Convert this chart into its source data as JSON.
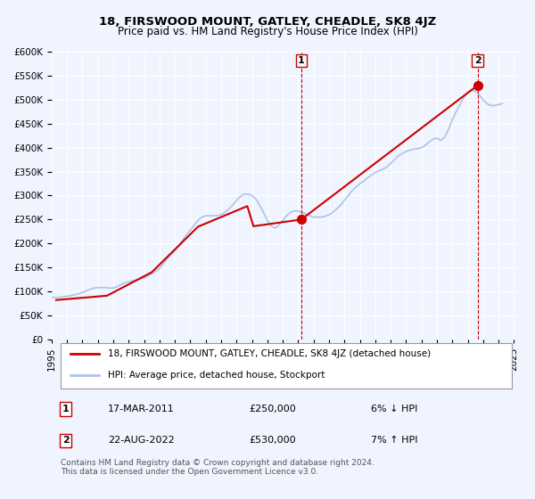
{
  "title": "18, FIRSWOOD MOUNT, GATLEY, CHEADLE, SK8 4JZ",
  "subtitle": "Price paid vs. HM Land Registry's House Price Index (HPI)",
  "xlabel": "",
  "ylabel": "",
  "ylim": [
    0,
    600000
  ],
  "yticks": [
    0,
    50000,
    100000,
    150000,
    200000,
    250000,
    300000,
    350000,
    400000,
    450000,
    500000,
    550000,
    600000
  ],
  "xlim_start": 1995.0,
  "xlim_end": 2025.5,
  "bg_color": "#f0f4ff",
  "plot_bg_color": "#f0f4ff",
  "grid_color": "#ffffff",
  "hpi_color": "#aac4e8",
  "price_color": "#cc0000",
  "marker1_date": 2011.2,
  "marker1_price": 250000,
  "marker1_label": "1",
  "marker2_date": 2022.64,
  "marker2_price": 530000,
  "marker2_label": "2",
  "legend_entry1": "18, FIRSWOOD MOUNT, GATLEY, CHEADLE, SK8 4JZ (detached house)",
  "legend_entry2": "HPI: Average price, detached house, Stockport",
  "annotation1_date": "17-MAR-2011",
  "annotation1_price": "£250,000",
  "annotation1_pct": "6% ↓ HPI",
  "annotation2_date": "22-AUG-2022",
  "annotation2_price": "£530,000",
  "annotation2_pct": "7% ↑ HPI",
  "footer": "Contains HM Land Registry data © Crown copyright and database right 2024.\nThis data is licensed under the Open Government Licence v3.0.",
  "hpi_x": [
    1995.0,
    1995.25,
    1995.5,
    1995.75,
    1996.0,
    1996.25,
    1996.5,
    1996.75,
    1997.0,
    1997.25,
    1997.5,
    1997.75,
    1998.0,
    1998.25,
    1998.5,
    1998.75,
    1999.0,
    1999.25,
    1999.5,
    1999.75,
    2000.0,
    2000.25,
    2000.5,
    2000.75,
    2001.0,
    2001.25,
    2001.5,
    2001.75,
    2002.0,
    2002.25,
    2002.5,
    2002.75,
    2003.0,
    2003.25,
    2003.5,
    2003.75,
    2004.0,
    2004.25,
    2004.5,
    2004.75,
    2005.0,
    2005.25,
    2005.5,
    2005.75,
    2006.0,
    2006.25,
    2006.5,
    2006.75,
    2007.0,
    2007.25,
    2007.5,
    2007.75,
    2008.0,
    2008.25,
    2008.5,
    2008.75,
    2009.0,
    2009.25,
    2009.5,
    2009.75,
    2010.0,
    2010.25,
    2010.5,
    2010.75,
    2011.0,
    2011.25,
    2011.5,
    2011.75,
    2012.0,
    2012.25,
    2012.5,
    2012.75,
    2013.0,
    2013.25,
    2013.5,
    2013.75,
    2014.0,
    2014.25,
    2014.5,
    2014.75,
    2015.0,
    2015.25,
    2015.5,
    2015.75,
    2016.0,
    2016.25,
    2016.5,
    2016.75,
    2017.0,
    2017.25,
    2017.5,
    2017.75,
    2018.0,
    2018.25,
    2018.5,
    2018.75,
    2019.0,
    2019.25,
    2019.5,
    2019.75,
    2020.0,
    2020.25,
    2020.5,
    2020.75,
    2021.0,
    2021.25,
    2021.5,
    2021.75,
    2022.0,
    2022.25,
    2022.5,
    2022.75,
    2023.0,
    2023.25,
    2023.5,
    2023.75,
    2024.0,
    2024.25
  ],
  "hpi_y": [
    88000,
    87000,
    87500,
    89000,
    90000,
    91000,
    93000,
    95000,
    98000,
    101000,
    104000,
    107000,
    108000,
    108000,
    108000,
    107000,
    107000,
    110000,
    114000,
    118000,
    120000,
    122000,
    124000,
    126000,
    128000,
    132000,
    137000,
    142000,
    148000,
    158000,
    168000,
    177000,
    185000,
    195000,
    207000,
    218000,
    228000,
    238000,
    248000,
    255000,
    258000,
    258000,
    258000,
    258000,
    260000,
    265000,
    272000,
    280000,
    290000,
    298000,
    303000,
    303000,
    300000,
    293000,
    280000,
    265000,
    248000,
    237000,
    232000,
    238000,
    248000,
    258000,
    265000,
    268000,
    268000,
    265000,
    262000,
    258000,
    255000,
    255000,
    255000,
    257000,
    260000,
    265000,
    272000,
    280000,
    290000,
    300000,
    310000,
    318000,
    325000,
    330000,
    337000,
    343000,
    348000,
    352000,
    355000,
    360000,
    367000,
    375000,
    383000,
    388000,
    392000,
    395000,
    397000,
    398000,
    400000,
    405000,
    412000,
    418000,
    420000,
    415000,
    422000,
    438000,
    458000,
    475000,
    490000,
    505000,
    515000,
    520000,
    518000,
    510000,
    500000,
    492000,
    488000,
    488000,
    490000,
    492000
  ],
  "price_x": [
    1995.3,
    1998.6,
    2001.5,
    2004.5,
    2007.7,
    2008.1,
    2011.2,
    2022.64
  ],
  "price_y": [
    82000,
    91000,
    140000,
    235000,
    278000,
    236000,
    250000,
    530000
  ]
}
